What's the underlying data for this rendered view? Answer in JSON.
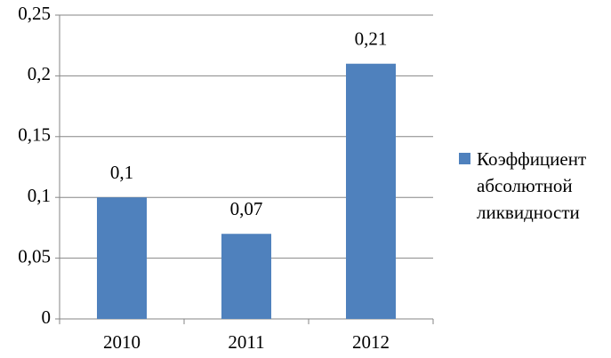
{
  "chart_data": {
    "type": "bar",
    "categories": [
      "2010",
      "2011",
      "2012"
    ],
    "series": [
      {
        "name": "Коэффициент абсолютной ликвидности",
        "color": "#4f81bd",
        "values": [
          0.1,
          0.07,
          0.21
        ],
        "value_labels": [
          "0,1",
          "0,07",
          "0,21"
        ]
      }
    ],
    "ylim": [
      0,
      0.25
    ],
    "yticks": [
      0,
      {
        "value": 0.05,
        "label": "0,05"
      },
      {
        "value": 0.1,
        "label": "0,1"
      },
      {
        "value": 0.15,
        "label": "0,15"
      },
      {
        "value": 0.2,
        "label": "0,2"
      },
      {
        "value": 0.25,
        "label": "0,25"
      }
    ],
    "grid": true,
    "legend": "right"
  }
}
